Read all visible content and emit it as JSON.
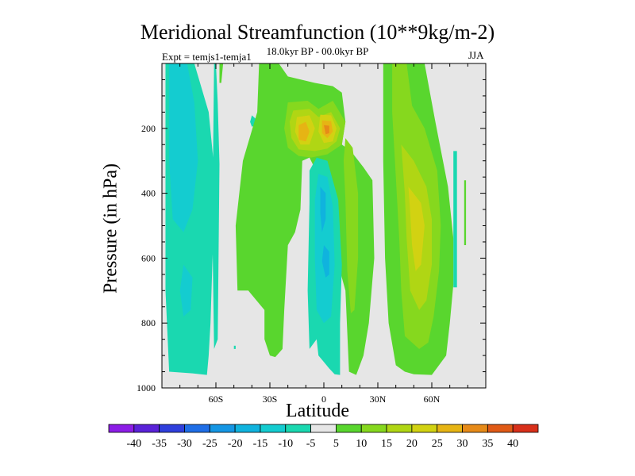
{
  "chart_data": {
    "type": "contour",
    "title": "Meridional Streamfunction (10**9kg/m-2)",
    "subtitle": "18.0kyr BP - 00.0kyr BP",
    "experiment": "Expt = temjs1-temja1",
    "season": "JJA",
    "xlabel": "Latitude",
    "ylabel": "Pressure (in hPa)",
    "xlim": [
      -90,
      90
    ],
    "ylim": [
      1000,
      0
    ],
    "x_ticks": [
      {
        "value": -60,
        "label": "60S"
      },
      {
        "value": -30,
        "label": "30S"
      },
      {
        "value": 0,
        "label": "0"
      },
      {
        "value": 30,
        "label": "30N"
      },
      {
        "value": 60,
        "label": "60N"
      }
    ],
    "y_ticks": [
      {
        "value": 200,
        "label": "200"
      },
      {
        "value": 400,
        "label": "400"
      },
      {
        "value": 600,
        "label": "600"
      },
      {
        "value": 800,
        "label": "800"
      },
      {
        "value": 1000,
        "label": "1000"
      }
    ],
    "colorbar": {
      "levels": [
        -40,
        -35,
        -30,
        -25,
        -20,
        -15,
        -10,
        -5,
        5,
        10,
        15,
        20,
        25,
        30,
        35,
        40
      ],
      "labels": [
        "-40",
        "-35",
        "-30",
        "-25",
        "-20",
        "-15",
        "-10",
        "-5",
        "5",
        "10",
        "15",
        "20",
        "25",
        "30",
        "35",
        "40"
      ],
      "colors": [
        "#8c1de6",
        "#5a22d8",
        "#2f3fdc",
        "#1f6ee6",
        "#1596e4",
        "#10b3de",
        "#14ccd0",
        "#1ad8b0",
        "#e6e6e6",
        "#59d62e",
        "#86d81e",
        "#b0d614",
        "#d2d212",
        "#e6b414",
        "#e68a18",
        "#e05a16",
        "#d8301a"
      ]
    },
    "features": [
      {
        "name": "southern-polar-negative-band",
        "sign": "negative",
        "min_value": -10,
        "lat_range": [
          -88,
          -55
        ],
        "pressure_range": [
          0,
          960
        ]
      },
      {
        "name": "southern-positive-cell",
        "sign": "positive",
        "max_value": 10,
        "lat_range": [
          -50,
          28
        ],
        "pressure_range": [
          0,
          960
        ]
      },
      {
        "name": "upper-tropical-maxima",
        "sign": "positive",
        "max_value": 30,
        "lat_range": [
          -17,
          8
        ],
        "pressure_range": [
          150,
          270
        ]
      },
      {
        "name": "tropical-negative-cell",
        "sign": "negative",
        "min_value": -20,
        "lat_range": [
          -10,
          10
        ],
        "pressure_range": [
          290,
          960
        ]
      },
      {
        "name": "northern-ferrel-cell",
        "sign": "positive",
        "max_value": 20,
        "lat_range": [
          33,
          73
        ],
        "pressure_range": [
          0,
          960
        ]
      }
    ]
  }
}
